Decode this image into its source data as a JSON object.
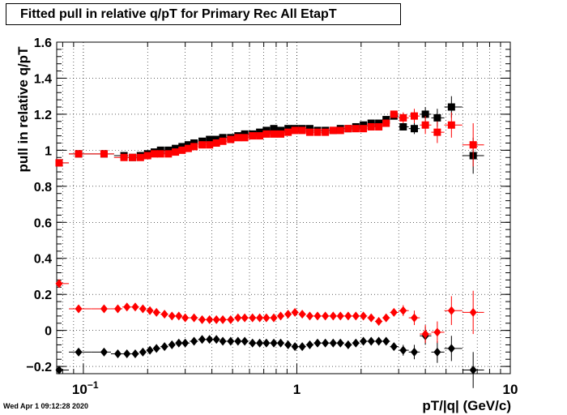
{
  "chart_data": {
    "type": "scatter",
    "title": "Fitted pull in relative q/pT  for Primary Rec All EtapT",
    "xlabel": "pT/|q| (GeV/c)",
    "ylabel": "pull in relative q/pT",
    "x_scale": "log",
    "xlim": [
      0.075,
      10
    ],
    "ylim": [
      -0.24,
      1.6
    ],
    "grid": true,
    "x_tick_labels": [
      {
        "value": 0.1,
        "base": "10",
        "exp": "−1"
      },
      {
        "value": 1,
        "base": "1",
        "exp": ""
      },
      {
        "value": 10,
        "base": "10",
        "exp": ""
      }
    ],
    "y_ticks": [
      -0.2,
      0,
      0.2,
      0.4,
      0.6,
      0.8,
      1,
      1.2,
      1.4,
      1.6
    ],
    "y_tick_labels": [
      "−0.2",
      "0",
      "0.2",
      "0.4",
      "0.6",
      "0.8",
      "1",
      "1.2",
      "1.4",
      "1.6"
    ],
    "series": [
      {
        "marker": "square",
        "color": "#000000",
        "points": [
          [
            0.077,
            0.93,
            0
          ],
          [
            0.095,
            0.98,
            0
          ],
          [
            0.125,
            0.98,
            0
          ],
          [
            0.155,
            0.97,
            0
          ],
          [
            0.17,
            0.96,
            0
          ],
          [
            0.185,
            0.97,
            0
          ],
          [
            0.2,
            0.98,
            0
          ],
          [
            0.215,
            0.99,
            0
          ],
          [
            0.23,
            1.0,
            0
          ],
          [
            0.25,
            1.0,
            0
          ],
          [
            0.27,
            1.01,
            0
          ],
          [
            0.29,
            1.02,
            0
          ],
          [
            0.31,
            1.03,
            0
          ],
          [
            0.33,
            1.04,
            0
          ],
          [
            0.36,
            1.05,
            0
          ],
          [
            0.39,
            1.06,
            0
          ],
          [
            0.42,
            1.06,
            0
          ],
          [
            0.45,
            1.07,
            0
          ],
          [
            0.49,
            1.07,
            0
          ],
          [
            0.53,
            1.08,
            0
          ],
          [
            0.57,
            1.09,
            0
          ],
          [
            0.62,
            1.09,
            0
          ],
          [
            0.67,
            1.1,
            0
          ],
          [
            0.72,
            1.11,
            0
          ],
          [
            0.78,
            1.12,
            0
          ],
          [
            0.84,
            1.11,
            0
          ],
          [
            0.91,
            1.12,
            0
          ],
          [
            0.98,
            1.12,
            0
          ],
          [
            1.06,
            1.12,
            0
          ],
          [
            1.15,
            1.12,
            0
          ],
          [
            1.25,
            1.11,
            0
          ],
          [
            1.36,
            1.11,
            0
          ],
          [
            1.48,
            1.11,
            0
          ],
          [
            1.6,
            1.12,
            0
          ],
          [
            1.74,
            1.12,
            0
          ],
          [
            1.89,
            1.13,
            0
          ],
          [
            2.05,
            1.14,
            0
          ],
          [
            2.23,
            1.15,
            0
          ],
          [
            2.42,
            1.15,
            0
          ],
          [
            2.62,
            1.17,
            0
          ],
          [
            2.85,
            1.19,
            0.01
          ],
          [
            3.15,
            1.13,
            0.02
          ],
          [
            3.55,
            1.12,
            0.03
          ],
          [
            4.0,
            1.2,
            0.04
          ],
          [
            4.55,
            1.18,
            0.05
          ],
          [
            5.3,
            1.24,
            0.06
          ],
          [
            6.7,
            0.97,
            0.1
          ]
        ]
      },
      {
        "marker": "square",
        "color": "#ff0000",
        "points": [
          [
            0.077,
            0.93,
            0
          ],
          [
            0.095,
            0.98,
            0
          ],
          [
            0.125,
            0.98,
            0
          ],
          [
            0.155,
            0.96,
            0
          ],
          [
            0.17,
            0.96,
            0
          ],
          [
            0.185,
            0.96,
            0
          ],
          [
            0.2,
            0.97,
            0
          ],
          [
            0.215,
            0.98,
            0
          ],
          [
            0.23,
            0.98,
            0
          ],
          [
            0.25,
            0.98,
            0
          ],
          [
            0.27,
            0.99,
            0
          ],
          [
            0.29,
            1.0,
            0
          ],
          [
            0.31,
            1.01,
            0
          ],
          [
            0.33,
            1.02,
            0
          ],
          [
            0.36,
            1.03,
            0
          ],
          [
            0.39,
            1.03,
            0
          ],
          [
            0.42,
            1.04,
            0
          ],
          [
            0.45,
            1.05,
            0
          ],
          [
            0.49,
            1.06,
            0
          ],
          [
            0.53,
            1.07,
            0
          ],
          [
            0.57,
            1.07,
            0
          ],
          [
            0.62,
            1.08,
            0
          ],
          [
            0.67,
            1.08,
            0
          ],
          [
            0.72,
            1.09,
            0
          ],
          [
            0.78,
            1.09,
            0
          ],
          [
            0.84,
            1.09,
            0
          ],
          [
            0.91,
            1.1,
            0
          ],
          [
            0.98,
            1.11,
            0
          ],
          [
            1.06,
            1.11,
            0
          ],
          [
            1.15,
            1.1,
            0
          ],
          [
            1.25,
            1.1,
            0
          ],
          [
            1.36,
            1.1,
            0
          ],
          [
            1.48,
            1.11,
            0
          ],
          [
            1.6,
            1.11,
            0
          ],
          [
            1.74,
            1.12,
            0
          ],
          [
            1.89,
            1.12,
            0
          ],
          [
            2.05,
            1.12,
            0
          ],
          [
            2.23,
            1.13,
            0
          ],
          [
            2.42,
            1.13,
            0
          ],
          [
            2.62,
            1.15,
            0
          ],
          [
            2.85,
            1.2,
            0.02
          ],
          [
            3.15,
            1.18,
            0.03
          ],
          [
            3.55,
            1.19,
            0.04
          ],
          [
            4.0,
            1.14,
            0.05
          ],
          [
            4.55,
            1.1,
            0.06
          ],
          [
            5.3,
            1.14,
            0.07
          ],
          [
            6.7,
            1.03,
            0.12
          ]
        ]
      },
      {
        "marker": "diamond",
        "color": "#000000",
        "points": [
          [
            0.077,
            -0.22,
            0
          ],
          [
            0.095,
            -0.12,
            0
          ],
          [
            0.125,
            -0.12,
            0
          ],
          [
            0.145,
            -0.13,
            0
          ],
          [
            0.16,
            -0.13,
            0
          ],
          [
            0.175,
            -0.13,
            0
          ],
          [
            0.19,
            -0.12,
            0
          ],
          [
            0.205,
            -0.11,
            0
          ],
          [
            0.22,
            -0.1,
            0
          ],
          [
            0.24,
            -0.09,
            0
          ],
          [
            0.26,
            -0.08,
            0
          ],
          [
            0.28,
            -0.07,
            0
          ],
          [
            0.3,
            -0.07,
            0
          ],
          [
            0.33,
            -0.06,
            0
          ],
          [
            0.36,
            -0.05,
            0
          ],
          [
            0.39,
            -0.05,
            0
          ],
          [
            0.42,
            -0.05,
            0
          ],
          [
            0.45,
            -0.06,
            0
          ],
          [
            0.49,
            -0.06,
            0
          ],
          [
            0.53,
            -0.06,
            0
          ],
          [
            0.57,
            -0.06,
            0
          ],
          [
            0.62,
            -0.07,
            0
          ],
          [
            0.67,
            -0.07,
            0
          ],
          [
            0.72,
            -0.07,
            0
          ],
          [
            0.78,
            -0.07,
            0
          ],
          [
            0.84,
            -0.07,
            0
          ],
          [
            0.91,
            -0.08,
            0
          ],
          [
            0.98,
            -0.09,
            0
          ],
          [
            1.06,
            -0.09,
            0
          ],
          [
            1.15,
            -0.08,
            0
          ],
          [
            1.25,
            -0.07,
            0
          ],
          [
            1.36,
            -0.07,
            0
          ],
          [
            1.48,
            -0.07,
            0
          ],
          [
            1.6,
            -0.07,
            0
          ],
          [
            1.74,
            -0.08,
            0
          ],
          [
            1.89,
            -0.07,
            0
          ],
          [
            2.05,
            -0.06,
            0
          ],
          [
            2.23,
            -0.06,
            0
          ],
          [
            2.42,
            -0.06,
            0
          ],
          [
            2.62,
            -0.06,
            0
          ],
          [
            2.85,
            -0.09,
            0.02
          ],
          [
            3.15,
            -0.11,
            0.03
          ],
          [
            3.55,
            -0.12,
            0.04
          ],
          [
            4.0,
            -0.03,
            0.05
          ],
          [
            4.55,
            -0.12,
            0.06
          ],
          [
            5.3,
            -0.1,
            0.07
          ],
          [
            6.7,
            -0.22,
            0.1
          ]
        ]
      },
      {
        "marker": "diamond",
        "color": "#ff0000",
        "points": [
          [
            0.077,
            0.26,
            0
          ],
          [
            0.095,
            0.12,
            0
          ],
          [
            0.125,
            0.12,
            0
          ],
          [
            0.145,
            0.12,
            0
          ],
          [
            0.16,
            0.13,
            0
          ],
          [
            0.175,
            0.13,
            0
          ],
          [
            0.19,
            0.12,
            0
          ],
          [
            0.205,
            0.11,
            0
          ],
          [
            0.22,
            0.1,
            0
          ],
          [
            0.24,
            0.09,
            0
          ],
          [
            0.26,
            0.08,
            0
          ],
          [
            0.28,
            0.08,
            0
          ],
          [
            0.3,
            0.07,
            0
          ],
          [
            0.33,
            0.07,
            0
          ],
          [
            0.36,
            0.06,
            0
          ],
          [
            0.39,
            0.06,
            0
          ],
          [
            0.42,
            0.06,
            0
          ],
          [
            0.45,
            0.06,
            0
          ],
          [
            0.49,
            0.06,
            0
          ],
          [
            0.53,
            0.07,
            0
          ],
          [
            0.57,
            0.07,
            0
          ],
          [
            0.62,
            0.07,
            0
          ],
          [
            0.67,
            0.07,
            0
          ],
          [
            0.72,
            0.07,
            0
          ],
          [
            0.78,
            0.07,
            0
          ],
          [
            0.84,
            0.08,
            0
          ],
          [
            0.91,
            0.09,
            0
          ],
          [
            0.98,
            0.1,
            0
          ],
          [
            1.06,
            0.09,
            0
          ],
          [
            1.15,
            0.08,
            0
          ],
          [
            1.25,
            0.08,
            0
          ],
          [
            1.36,
            0.08,
            0
          ],
          [
            1.48,
            0.08,
            0
          ],
          [
            1.6,
            0.08,
            0
          ],
          [
            1.74,
            0.08,
            0
          ],
          [
            1.89,
            0.08,
            0
          ],
          [
            2.05,
            0.08,
            0
          ],
          [
            2.23,
            0.07,
            0
          ],
          [
            2.42,
            0.05,
            0
          ],
          [
            2.62,
            0.07,
            0
          ],
          [
            2.85,
            0.1,
            0.02
          ],
          [
            3.15,
            0.11,
            0.03
          ],
          [
            3.55,
            0.07,
            0.04
          ],
          [
            4.0,
            -0.02,
            0.05
          ],
          [
            4.55,
            -0.01,
            0.06
          ],
          [
            5.3,
            0.11,
            0.08
          ],
          [
            6.7,
            0.1,
            0.12
          ]
        ]
      }
    ]
  },
  "timestamp": "Wed Apr  1 09:12:28 2020"
}
